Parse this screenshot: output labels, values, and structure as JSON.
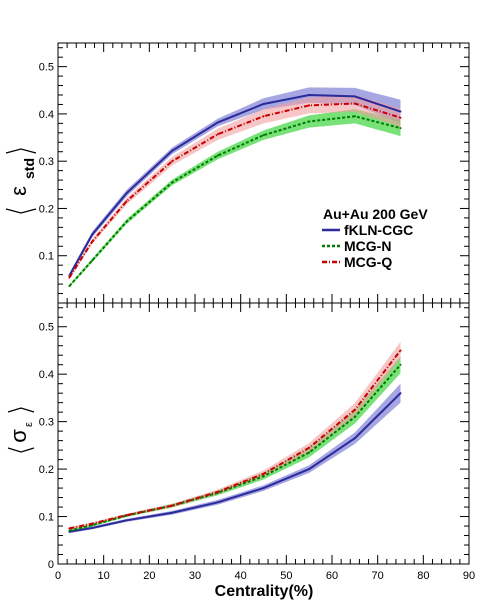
{
  "chart_data": [
    {
      "type": "line",
      "panel": "top",
      "ylabel_symbol": "ε",
      "ylabel_subscript": "std",
      "xlim": [
        0,
        90
      ],
      "ylim": [
        0,
        0.55
      ],
      "yticks": [
        "0.1",
        "0.2",
        "0.3",
        "0.4",
        "0.5"
      ],
      "ytick_values": [
        0.1,
        0.2,
        0.3,
        0.4,
        0.5
      ],
      "legend": {
        "title": "Au+Au 200 GeV",
        "placement": "right",
        "entries": [
          "fKLN-CGC",
          "MCG-N",
          "MCG-Q"
        ]
      },
      "x": [
        2.5,
        7.5,
        15,
        25,
        35,
        45,
        55,
        65,
        75
      ],
      "series": [
        {
          "name": "fKLN-CGC",
          "color": "#2b2b9a",
          "band_color": "#6b6bd0",
          "style": "solid",
          "values": [
            0.058,
            0.145,
            0.232,
            0.322,
            0.382,
            0.421,
            0.44,
            0.437,
            0.405
          ],
          "band": [
            0.005,
            0.006,
            0.007,
            0.007,
            0.008,
            0.012,
            0.016,
            0.018,
            0.025
          ]
        },
        {
          "name": "MCG-N",
          "color": "#007a00",
          "band_color": "#1ecf1e",
          "style": "dashed",
          "values": [
            0.036,
            0.09,
            0.172,
            0.255,
            0.312,
            0.355,
            0.384,
            0.395,
            0.37
          ],
          "band": [
            0.003,
            0.004,
            0.005,
            0.006,
            0.008,
            0.01,
            0.013,
            0.015,
            0.017
          ]
        },
        {
          "name": "MCG-Q",
          "color": "#c80000",
          "band_color": "#f2a0a0",
          "style": "dashdot",
          "values": [
            0.054,
            0.13,
            0.215,
            0.3,
            0.357,
            0.395,
            0.418,
            0.422,
            0.392
          ],
          "band": [
            0.004,
            0.005,
            0.007,
            0.009,
            0.012,
            0.015,
            0.017,
            0.018,
            0.02
          ]
        }
      ]
    },
    {
      "type": "line",
      "panel": "bottom",
      "ylabel_symbol": "σ",
      "ylabel_subscript": "ε",
      "xlabel": "Centrality(%)",
      "xlim": [
        0,
        90
      ],
      "ylim": [
        0,
        0.55
      ],
      "xticks": [
        "0",
        "10",
        "20",
        "30",
        "40",
        "50",
        "60",
        "70",
        "80",
        "90"
      ],
      "xtick_values": [
        0,
        10,
        20,
        30,
        40,
        50,
        60,
        70,
        80,
        90
      ],
      "yticks": [
        "0",
        "0.1",
        "0.2",
        "0.3",
        "0.4",
        "0.5"
      ],
      "ytick_values": [
        0,
        0.1,
        0.2,
        0.3,
        0.4,
        0.5
      ],
      "x": [
        2.5,
        7.5,
        15,
        25,
        35,
        45,
        55,
        65,
        75
      ],
      "series": [
        {
          "name": "fKLN-CGC",
          "color": "#2b2b9a",
          "band_color": "#6b6bd0",
          "style": "solid",
          "values": [
            0.068,
            0.076,
            0.092,
            0.108,
            0.13,
            0.16,
            0.2,
            0.265,
            0.36
          ],
          "band": [
            0.003,
            0.003,
            0.003,
            0.004,
            0.005,
            0.006,
            0.008,
            0.012,
            0.02
          ]
        },
        {
          "name": "MCG-N",
          "color": "#007a00",
          "band_color": "#1ecf1e",
          "style": "dashed",
          "values": [
            0.07,
            0.082,
            0.102,
            0.123,
            0.15,
            0.185,
            0.235,
            0.31,
            0.42
          ],
          "band": [
            0.003,
            0.003,
            0.003,
            0.004,
            0.005,
            0.007,
            0.01,
            0.014,
            0.018
          ]
        },
        {
          "name": "MCG-Q",
          "color": "#c80000",
          "band_color": "#f2a0a0",
          "style": "dashdot",
          "values": [
            0.075,
            0.085,
            0.103,
            0.123,
            0.152,
            0.19,
            0.245,
            0.325,
            0.45
          ],
          "band": [
            0.003,
            0.003,
            0.003,
            0.004,
            0.005,
            0.007,
            0.01,
            0.014,
            0.018
          ]
        }
      ]
    }
  ]
}
